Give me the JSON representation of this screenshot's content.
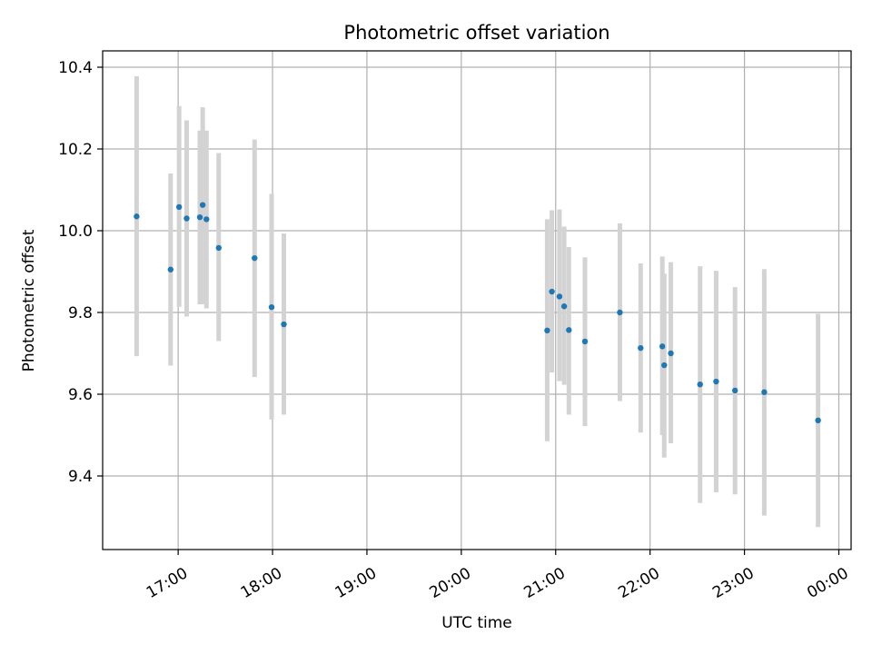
{
  "chart_data": {
    "type": "scatter",
    "title": "Photometric offset variation",
    "xlabel": "UTC time",
    "ylabel": "Photometric offset",
    "x_tick_labels": [
      "17:00",
      "18:00",
      "19:00",
      "20:00",
      "21:00",
      "22:00",
      "23:00",
      "00:00"
    ],
    "x_ticks_hours": [
      17,
      18,
      19,
      20,
      21,
      22,
      23,
      24
    ],
    "y_ticks": [
      9.4,
      9.6,
      9.8,
      10.0,
      10.2,
      10.4
    ],
    "y_tick_labels": [
      "9.4",
      "9.6",
      "9.8",
      "10.0",
      "10.2",
      "10.4"
    ],
    "xlim_hours": [
      16.2,
      24.13
    ],
    "ylim": [
      9.22,
      10.44
    ],
    "grid": true,
    "colors": {
      "point": "#1f77b4",
      "errorbar": "#d3d3d3",
      "grid": "#b0b0b0"
    },
    "series": [
      {
        "marker": "point",
        "x_hours": [
          16.56,
          16.92,
          17.01,
          17.09,
          17.23,
          17.26,
          17.3,
          17.43,
          17.81,
          17.99,
          18.12,
          20.91,
          20.96,
          21.04,
          21.09,
          21.14,
          21.31,
          21.68,
          21.9,
          22.13,
          22.15,
          22.22,
          22.53,
          22.7,
          22.9,
          23.21,
          23.78
        ],
        "y": [
          10.035,
          9.905,
          10.058,
          10.03,
          10.033,
          10.063,
          10.028,
          9.958,
          9.933,
          9.813,
          9.771,
          9.756,
          9.851,
          9.839,
          9.815,
          9.757,
          9.729,
          9.8,
          9.713,
          9.717,
          9.671,
          9.7,
          9.624,
          9.631,
          9.609,
          9.605,
          9.536
        ],
        "y_low": [
          9.693,
          9.67,
          9.814,
          9.79,
          9.82,
          9.82,
          9.81,
          9.73,
          9.642,
          9.538,
          9.55,
          9.485,
          9.653,
          9.632,
          9.623,
          9.55,
          9.522,
          9.583,
          9.506,
          9.5,
          9.445,
          9.48,
          9.334,
          9.36,
          9.355,
          9.303,
          9.275
        ],
        "y_high": [
          10.378,
          10.14,
          10.305,
          10.27,
          10.245,
          10.302,
          10.245,
          10.19,
          10.223,
          10.09,
          9.993,
          10.028,
          10.05,
          10.052,
          10.01,
          9.96,
          9.935,
          10.018,
          9.92,
          9.937,
          9.895,
          9.923,
          9.913,
          9.902,
          9.862,
          9.906,
          9.797
        ]
      }
    ]
  }
}
